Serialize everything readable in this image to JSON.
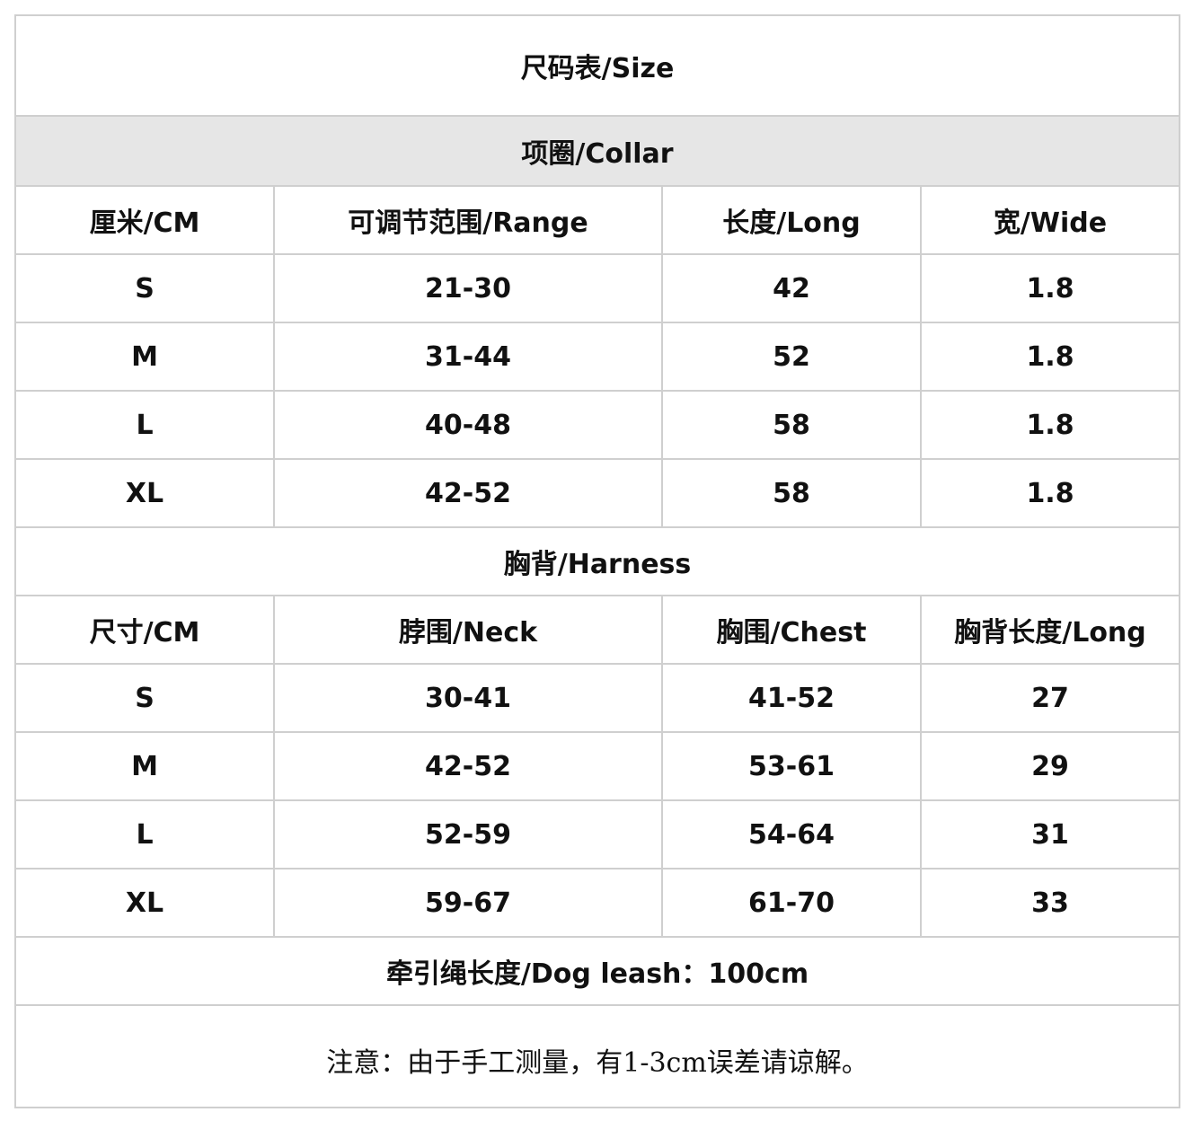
{
  "title": "尺码表/Size",
  "collar": {
    "section_title": "项圈/Collar",
    "headers": [
      "厘米/CM",
      "可调节范围/Range",
      "长度/Long",
      "宽/Wide"
    ],
    "rows": [
      [
        "S",
        "21-30",
        "42",
        "1.8"
      ],
      [
        "M",
        "31-44",
        "52",
        "1.8"
      ],
      [
        "L",
        "40-48",
        "58",
        "1.8"
      ],
      [
        "XL",
        "42-52",
        "58",
        "1.8"
      ]
    ]
  },
  "harness": {
    "section_title": "胸背/Harness",
    "headers": [
      "尺寸/CM",
      "脖围/Neck",
      "胸围/Chest",
      "胸背长度/Long"
    ],
    "rows": [
      [
        "S",
        "30-41",
        "41-52",
        "27"
      ],
      [
        "M",
        "42-52",
        "53-61",
        "29"
      ],
      [
        "L",
        "52-59",
        "54-64",
        "31"
      ],
      [
        "XL",
        "59-67",
        "61-70",
        "33"
      ]
    ]
  },
  "leash": "牵引绳长度/Dog leash：100cm",
  "note": "注意：由于手工测量，有1-3cm误差请谅解。",
  "colors": {
    "border": "#cfcfcf",
    "section_bg": "#e6e6e6",
    "text": "#111111"
  }
}
